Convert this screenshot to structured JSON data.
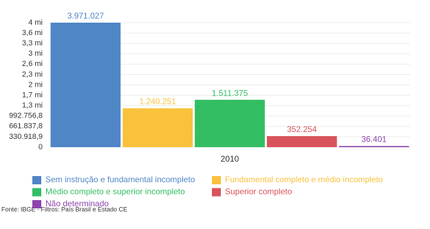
{
  "chart_data": {
    "type": "bar",
    "categories": [
      "2010"
    ],
    "series": [
      {
        "name": "Sem instrução e fundamental incompleto",
        "color": "#4f86c6",
        "values": [
          3971027
        ],
        "value_labels": [
          "3.971.027"
        ]
      },
      {
        "name": "Fundamental completo e médio incompleto",
        "color": "#f9c23c",
        "values": [
          1240251
        ],
        "value_labels": [
          "1.240.251"
        ]
      },
      {
        "name": "Médio completo e superior incompleto",
        "color": "#33be63",
        "values": [
          1511375
        ],
        "value_labels": [
          "1.511.375"
        ]
      },
      {
        "name": "Superior completo",
        "color": "#d9535c",
        "values": [
          352254
        ],
        "value_labels": [
          "352.254"
        ]
      },
      {
        "name": "Não determinado",
        "color": "#8e44ad",
        "values": [
          36401
        ],
        "value_labels": [
          "36.401"
        ]
      }
    ],
    "ylim": [
      0,
      3971027
    ],
    "yticks": [
      0,
      {
        "value": 330918.9,
        "label": "330.918,9"
      },
      {
        "value": 661837.8,
        "label": "661.837,8"
      },
      {
        "value": 992756.8,
        "label": "992.756,8"
      },
      {
        "value": 1323675.6,
        "label": "1,3 mi"
      },
      {
        "value": 1654594.5,
        "label": "1,7 mi"
      },
      {
        "value": 1985513.4,
        "label": "2 mi"
      },
      {
        "value": 2316432.3,
        "label": "2,3 mi"
      },
      {
        "value": 2647351.2,
        "label": "2,6 mi"
      },
      {
        "value": 2978270.1,
        "label": "3 mi"
      },
      {
        "value": 3309189,
        "label": "3,3 mi"
      },
      {
        "value": 3640107.9,
        "label": "3,6 mi"
      },
      {
        "value": 3971027,
        "label": "4 mi"
      }
    ],
    "grid": true,
    "legend": "bottom",
    "source": "Fonte: IBGE - Filtros: País Brasil e Estado CE"
  }
}
